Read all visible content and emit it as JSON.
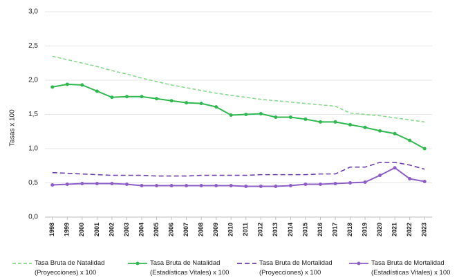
{
  "chart_data": {
    "type": "line",
    "y_label": "Tasas x 100",
    "categories": [
      "1998",
      "1999",
      "2000",
      "2001",
      "2002",
      "2003",
      "2004",
      "2005",
      "2006",
      "2007",
      "2008",
      "2009",
      "2010",
      "2011",
      "2012",
      "2013",
      "2014",
      "2015",
      "2016",
      "2017",
      "2018",
      "2019",
      "2020",
      "2021",
      "2022",
      "2023"
    ],
    "ylim": [
      0,
      3
    ],
    "yticks": [
      {
        "value": 0,
        "label": "0,0"
      },
      {
        "value": 0.5,
        "label": "0,5"
      },
      {
        "value": 1,
        "label": "1,0"
      },
      {
        "value": 1.5,
        "label": "1,5"
      },
      {
        "value": 2,
        "label": "2,0"
      },
      {
        "value": 2.5,
        "label": "2,5"
      },
      {
        "value": 3,
        "label": "3,0"
      }
    ],
    "grid": true,
    "legend": "bottom",
    "series": [
      {
        "name": "Tasa Bruta de Natalidad (Proyecciones) x 100",
        "color": "#86d98a",
        "dashed": true,
        "markers": false,
        "values": [
          2.35,
          2.3,
          2.25,
          2.2,
          2.14,
          2.09,
          2.03,
          1.98,
          1.93,
          1.89,
          1.85,
          1.81,
          1.78,
          1.75,
          1.72,
          1.7,
          1.68,
          1.66,
          1.64,
          1.62,
          1.52,
          1.5,
          1.48,
          1.45,
          1.42,
          1.39
        ]
      },
      {
        "name": "Tasa Bruta de Natalidad (Estadísticas Vitales) x 100",
        "color": "#2fb84f",
        "dashed": false,
        "markers": true,
        "values": [
          1.9,
          1.94,
          1.93,
          1.84,
          1.75,
          1.76,
          1.76,
          1.73,
          1.7,
          1.67,
          1.66,
          1.61,
          1.49,
          1.5,
          1.51,
          1.46,
          1.46,
          1.43,
          1.39,
          1.39,
          1.35,
          1.31,
          1.26,
          1.22,
          1.12,
          1.0
        ]
      },
      {
        "name": "Tasa Bruta de Mortalidad (Proyecciones) x 100",
        "color": "#6a3fa8",
        "dashed": true,
        "markers": false,
        "values": [
          0.65,
          0.64,
          0.63,
          0.62,
          0.61,
          0.61,
          0.61,
          0.6,
          0.6,
          0.6,
          0.61,
          0.61,
          0.61,
          0.61,
          0.62,
          0.62,
          0.62,
          0.62,
          0.63,
          0.63,
          0.73,
          0.73,
          0.8,
          0.8,
          0.76,
          0.7
        ]
      },
      {
        "name": "Tasa Bruta de Mortalidad (Estadísticas Vitales) x 100",
        "color": "#8c5cc7",
        "dashed": false,
        "markers": true,
        "values": [
          0.47,
          0.48,
          0.49,
          0.49,
          0.49,
          0.48,
          0.46,
          0.46,
          0.46,
          0.46,
          0.46,
          0.46,
          0.46,
          0.45,
          0.45,
          0.45,
          0.46,
          0.48,
          0.48,
          0.49,
          0.5,
          0.51,
          0.61,
          0.72,
          0.56,
          0.52
        ]
      }
    ]
  }
}
